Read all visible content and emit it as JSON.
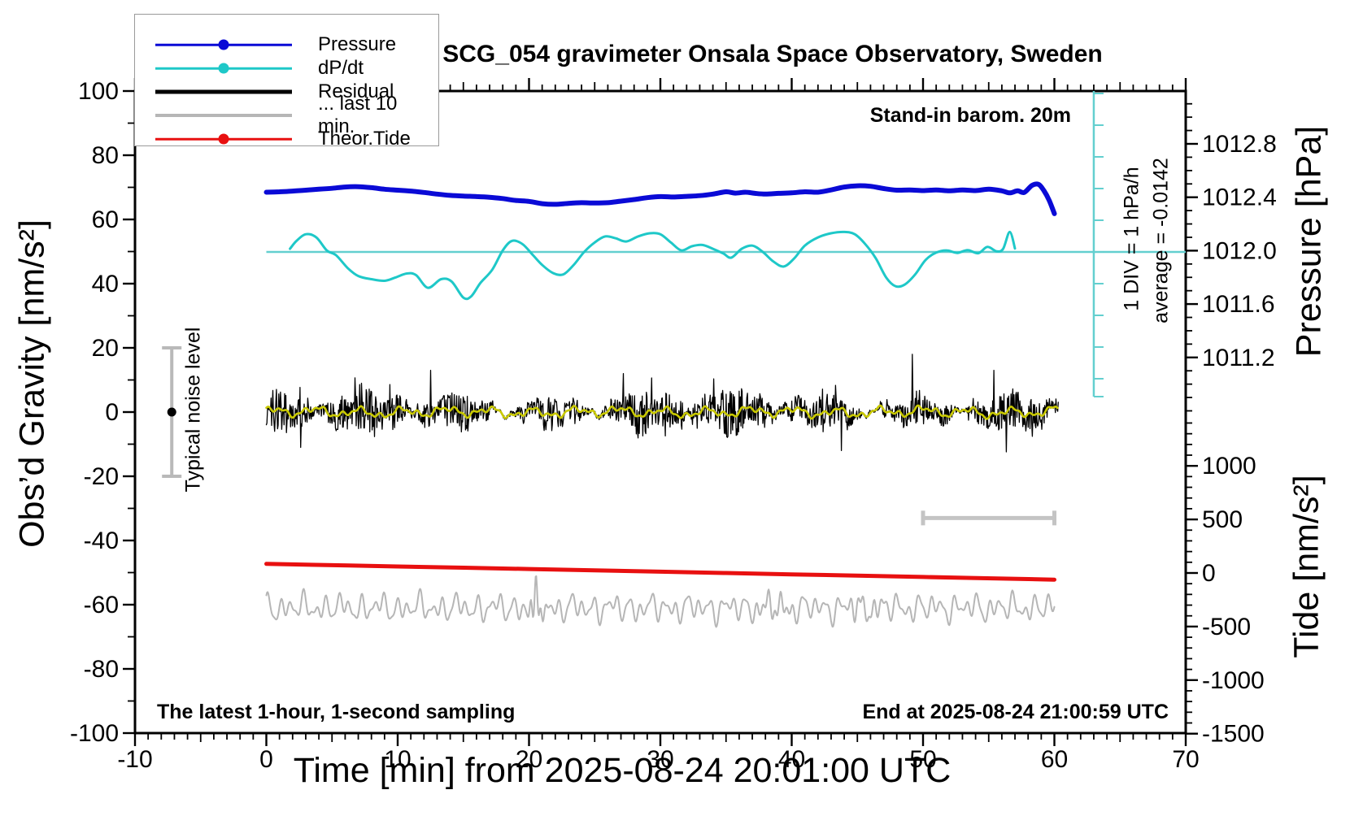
{
  "title": "SCG_054 gravimeter Onsala Space Observatory, Sweden",
  "annotations": {
    "barometer": "Stand-in barom. 20m",
    "div_scale": "1 DIV = 1 hPa/h",
    "average": "average = -0.0142",
    "noise_label": "Typical noise level",
    "sampling": "The latest 1-hour, 1-second sampling",
    "end_time": "End at 2025-08-24 21:00:59 UTC"
  },
  "legend": [
    {
      "label": "Pressure",
      "color": "#0a0ad6",
      "style": "line-dot",
      "lw": 2.5
    },
    {
      "label": "dP/dt",
      "color": "#1ec8c8",
      "style": "line-dot",
      "lw": 2.5
    },
    {
      "label": "Residual",
      "color": "#000000",
      "style": "thick-line",
      "lw": 5
    },
    {
      "label": "... last 10 min.",
      "color": "#b6b6b6",
      "style": "thick-line",
      "lw": 4
    },
    {
      "label": "Theor.Tide",
      "color": "#e81010",
      "style": "line-dot",
      "lw": 2.5
    }
  ],
  "chart_data": {
    "type": "line",
    "x_axis": {
      "label": "Time [min] from 2025-08-24 20:01:00 UTC",
      "min": -10,
      "max": 70,
      "major_ticks": [
        -10,
        0,
        10,
        20,
        30,
        40,
        50,
        60,
        70
      ],
      "minor_step": 1
    },
    "y_gravity": {
      "label": "Obs’d Gravity [nm/s²]",
      "min": -100,
      "max": 100,
      "major_ticks": [
        100,
        80,
        60,
        40,
        20,
        0,
        -20,
        -40,
        -60,
        -80,
        -100
      ],
      "minor_step": 10
    },
    "y_pressure": {
      "label": "Pressure [hPa]",
      "major_ticks": [
        1012.8,
        1012.4,
        1012.0,
        1011.6,
        1011.2
      ],
      "tick_labels": [
        "1012.8",
        "1012.4",
        "1012.0",
        "1011.6",
        "1011.2"
      ],
      "minor_step": 0.1
    },
    "y_tide": {
      "label": "Tide [nm/s²]",
      "major_ticks": [
        1000,
        500,
        0,
        -500,
        -1000,
        -1500
      ],
      "minor_step": 100
    },
    "refs": {
      "ref_color": "#63cfcf",
      "dpdt_zero_line_hpa_per_h": 0,
      "div_bar": {
        "x_min": 63,
        "div_value_hpa_per_h": 1
      },
      "noise_bar": {
        "x_min": -7.2,
        "center": 0,
        "half_range": 20,
        "color": "#b9b9b9"
      },
      "last10_bar": {
        "from_min": 50,
        "to_min": 60,
        "gravity_level": -33,
        "color": "#c4c4c4"
      }
    },
    "series": [
      {
        "name": "Pressure",
        "axis": "pressure",
        "unit": "hPa",
        "color": "#0a0ad6",
        "width": 6,
        "smooth": true,
        "points": [
          [
            0,
            1012.438
          ],
          [
            1,
            1012.441
          ],
          [
            2,
            1012.446
          ],
          [
            3,
            1012.453
          ],
          [
            4,
            1012.46
          ],
          [
            5,
            1012.467
          ],
          [
            6,
            1012.477
          ],
          [
            7,
            1012.479
          ],
          [
            8,
            1012.472
          ],
          [
            9,
            1012.46
          ],
          [
            10,
            1012.453
          ],
          [
            11,
            1012.446
          ],
          [
            12,
            1012.436
          ],
          [
            13,
            1012.424
          ],
          [
            14,
            1012.414
          ],
          [
            15,
            1012.409
          ],
          [
            16,
            1012.405
          ],
          [
            17,
            1012.4
          ],
          [
            18,
            1012.39
          ],
          [
            19,
            1012.376
          ],
          [
            20,
            1012.369
          ],
          [
            21,
            1012.352
          ],
          [
            22,
            1012.347
          ],
          [
            23,
            1012.354
          ],
          [
            24,
            1012.359
          ],
          [
            25,
            1012.357
          ],
          [
            26,
            1012.359
          ],
          [
            27,
            1012.371
          ],
          [
            28,
            1012.383
          ],
          [
            29,
            1012.397
          ],
          [
            30,
            1012.405
          ],
          [
            31,
            1012.402
          ],
          [
            32,
            1012.407
          ],
          [
            33,
            1012.412
          ],
          [
            34,
            1012.424
          ],
          [
            35,
            1012.441
          ],
          [
            35.7,
            1012.431
          ],
          [
            36.5,
            1012.438
          ],
          [
            37.2,
            1012.429
          ],
          [
            38,
            1012.424
          ],
          [
            39,
            1012.429
          ],
          [
            40,
            1012.433
          ],
          [
            41,
            1012.441
          ],
          [
            42,
            1012.438
          ],
          [
            43,
            1012.455
          ],
          [
            44,
            1012.477
          ],
          [
            45,
            1012.486
          ],
          [
            46,
            1012.482
          ],
          [
            47,
            1012.465
          ],
          [
            48,
            1012.453
          ],
          [
            49,
            1012.455
          ],
          [
            50,
            1012.45
          ],
          [
            51,
            1012.455
          ],
          [
            52,
            1012.448
          ],
          [
            53,
            1012.455
          ],
          [
            54,
            1012.45
          ],
          [
            55,
            1012.46
          ],
          [
            56,
            1012.448
          ],
          [
            56.6,
            1012.433
          ],
          [
            57.2,
            1012.448
          ],
          [
            57.7,
            1012.436
          ],
          [
            58.3,
            1012.489
          ],
          [
            58.8,
            1012.496
          ],
          [
            59.2,
            1012.45
          ],
          [
            59.6,
            1012.378
          ],
          [
            60,
            1012.277
          ]
        ]
      },
      {
        "name": "dP/dt",
        "axis": "dpdt",
        "unit": "hPa/h",
        "color": "#1ec8c8",
        "width": 3,
        "smooth": true,
        "points": [
          [
            1.8,
            0.1
          ],
          [
            2.3,
            0.35
          ],
          [
            3,
            0.56
          ],
          [
            3.8,
            0.46
          ],
          [
            4.6,
            0.05
          ],
          [
            5.3,
            -0.1
          ],
          [
            6.2,
            -0.51
          ],
          [
            7,
            -0.76
          ],
          [
            8,
            -0.86
          ],
          [
            9,
            -0.91
          ],
          [
            9.8,
            -0.81
          ],
          [
            10.7,
            -0.68
          ],
          [
            11.4,
            -0.73
          ],
          [
            12.3,
            -1.13
          ],
          [
            13.3,
            -0.86
          ],
          [
            14.1,
            -0.93
          ],
          [
            15,
            -1.44
          ],
          [
            15.6,
            -1.4
          ],
          [
            16.3,
            -0.98
          ],
          [
            17.2,
            -0.56
          ],
          [
            18,
            0.05
          ],
          [
            18.7,
            0.35
          ],
          [
            19.5,
            0.25
          ],
          [
            20.3,
            -0.1
          ],
          [
            21,
            -0.41
          ],
          [
            21.8,
            -0.66
          ],
          [
            22.6,
            -0.71
          ],
          [
            23.4,
            -0.41
          ],
          [
            24.2,
            0.0
          ],
          [
            25,
            0.3
          ],
          [
            25.8,
            0.49
          ],
          [
            26.6,
            0.43
          ],
          [
            27.4,
            0.33
          ],
          [
            28.3,
            0.49
          ],
          [
            29.2,
            0.59
          ],
          [
            30,
            0.56
          ],
          [
            30.8,
            0.3
          ],
          [
            31.6,
            0.05
          ],
          [
            32.4,
            0.18
          ],
          [
            33.2,
            0.22
          ],
          [
            34,
            0.1
          ],
          [
            34.8,
            -0.05
          ],
          [
            35.4,
            -0.18
          ],
          [
            36.2,
            0.1
          ],
          [
            37,
            0.2
          ],
          [
            37.8,
            0.0
          ],
          [
            38.6,
            -0.3
          ],
          [
            39.4,
            -0.46
          ],
          [
            40.2,
            -0.2
          ],
          [
            41,
            0.2
          ],
          [
            42,
            0.46
          ],
          [
            43,
            0.59
          ],
          [
            44,
            0.63
          ],
          [
            44.8,
            0.56
          ],
          [
            45.6,
            0.25
          ],
          [
            46.4,
            -0.2
          ],
          [
            47.2,
            -0.81
          ],
          [
            47.9,
            -1.08
          ],
          [
            48.6,
            -1.03
          ],
          [
            49.4,
            -0.71
          ],
          [
            50.2,
            -0.25
          ],
          [
            51,
            -0.02
          ],
          [
            51.8,
            0.05
          ],
          [
            52.6,
            -0.03
          ],
          [
            53.4,
            0.06
          ],
          [
            54.2,
            -0.04
          ],
          [
            54.9,
            0.16
          ],
          [
            55.6,
            0.02
          ],
          [
            56.1,
            0.1
          ],
          [
            56.6,
            0.63
          ],
          [
            57,
            0.11
          ]
        ]
      },
      {
        "name": "Theor.Tide",
        "axis": "tide",
        "unit": "nm/s2",
        "color": "#e81010",
        "width": 5,
        "smooth": true,
        "points": [
          [
            0,
            85
          ],
          [
            10,
            61
          ],
          [
            20,
            37
          ],
          [
            30,
            12
          ],
          [
            40,
            -13
          ],
          [
            50,
            -37
          ],
          [
            60,
            -62
          ]
        ]
      }
    ],
    "synth": {
      "residual_mean": {
        "name": "Residual smoothed",
        "color": "#c9c900",
        "width": 2.6,
        "t0": 0,
        "t1": 60.3,
        "step": 0.08,
        "center": 0,
        "components": [
          {
            "a": 1.05,
            "f": 1.9,
            "p": 0.7
          },
          {
            "a": 0.65,
            "f": 4.3,
            "p": 2.1
          },
          {
            "a": 0.45,
            "f": 8.9,
            "p": 0
          },
          {
            "a": 0.3,
            "f": 0.53,
            "p": 0.3
          }
        ]
      },
      "residual_noise": {
        "name": "Residual",
        "color": "#000000",
        "width": 1.3,
        "t0": 0,
        "t1": 60.3,
        "step": 0.045,
        "seed": 1234,
        "amp_const": 3.9,
        "amp_components": [
          {
            "a": 2.0,
            "f": 0.9,
            "p": 1.0
          },
          {
            "a": 1.3,
            "f": 0.23,
            "p": 0
          },
          {
            "a": 0.8,
            "f": 2.7,
            "p": 0
          }
        ],
        "spike_prob": 0.05,
        "spike_gain": 2.0,
        "spikes": [
          [
            2.6,
            -11
          ],
          [
            12.5,
            13
          ],
          [
            27.2,
            12
          ],
          [
            43.8,
            -12
          ],
          [
            49.2,
            18
          ],
          [
            55.4,
            13
          ]
        ]
      },
      "last10": {
        "name": "... last 10 min.",
        "color": "#b6b6b6",
        "width": 2,
        "t0": 0,
        "t1": 60,
        "step": 0.05,
        "center": -61,
        "components": [
          {
            "a": 2.3,
            "f": 7.1,
            "p": 0.3
          },
          {
            "a": 1.7,
            "f": 4.3,
            "p": 1.7
          },
          {
            "a": 1.25,
            "f": 11.3,
            "p": 0.9
          },
          {
            "a": 0.85,
            "f": 2.1,
            "p": 2.4
          }
        ],
        "bursts": [
          {
            "t": 20.55,
            "w": 0.5,
            "a": 5.2,
            "f": 16,
            "p": 0
          },
          {
            "t": 38.7,
            "w": 0.9,
            "a": 3.6,
            "f": 13,
            "p": 1
          },
          {
            "t": 45.6,
            "w": 1.1,
            "a": 2.2,
            "f": 14,
            "p": 0
          }
        ]
      }
    }
  }
}
